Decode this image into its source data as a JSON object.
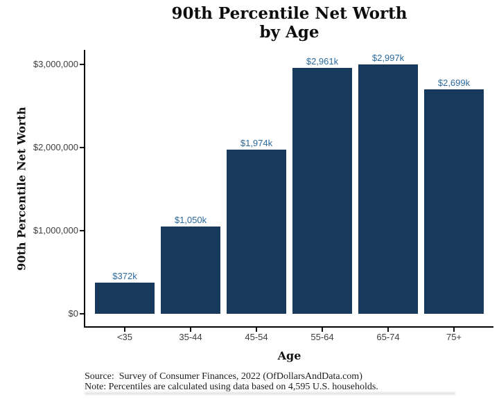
{
  "title": {
    "line1": "90th Percentile Net Worth",
    "line2": "by Age"
  },
  "axes": {
    "y_label": "90th Percentile Net Worth",
    "x_label": "Age"
  },
  "footer": {
    "source": "Source:  Survey of Consumer Finances, 2022 (OfDollarsAndData.com)",
    "note": "Note: Percentiles are calculated using data based on 4,595 U.S. households."
  },
  "colors": {
    "bar_fill": "#16395C",
    "value_label": "#2B6A9E",
    "axis_line": "#000000",
    "tick_text": "#3D3D3D"
  },
  "chart_data": {
    "type": "bar",
    "title": "90th Percentile Net Worth by Age",
    "xlabel": "Age",
    "ylabel": "90th Percentile Net Worth",
    "categories": [
      "<35",
      "35-44",
      "45-54",
      "55-64",
      "65-74",
      "75+"
    ],
    "values": [
      372000,
      1050000,
      1974000,
      2961000,
      2997000,
      2699000
    ],
    "bar_labels": [
      "$372k",
      "$1,050k",
      "$1,974k",
      "$2,961k",
      "$2,997k",
      "$2,699k"
    ],
    "ylim": [
      0,
      3000000
    ],
    "y_ticks": [
      {
        "value": 0,
        "label": "$0"
      },
      {
        "value": 1000000,
        "label": "$1,000,000"
      },
      {
        "value": 2000000,
        "label": "$2,000,000"
      },
      {
        "value": 3000000,
        "label": "$3,000,000"
      }
    ],
    "grid": false,
    "legend": false
  }
}
